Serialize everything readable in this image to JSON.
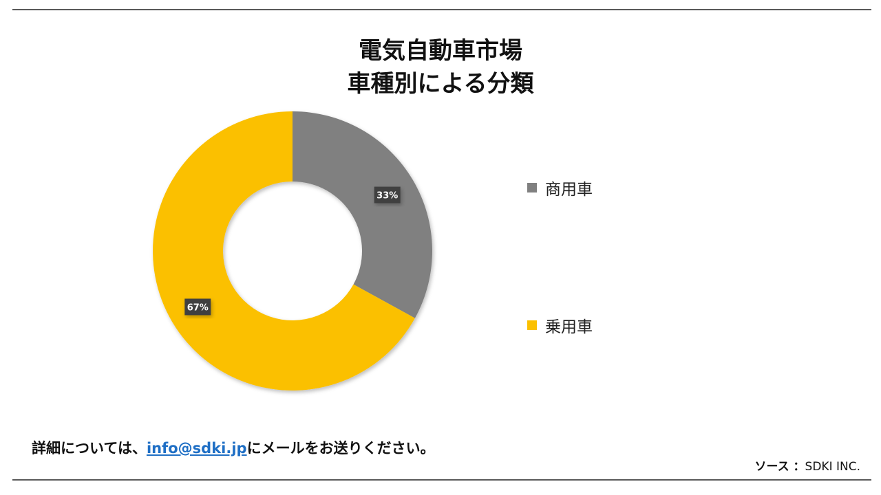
{
  "title_line1": "電気自動車市場",
  "title_line2": "車種別による分類",
  "chart_data": {
    "type": "pie",
    "hole": true,
    "categories": [
      "商用車",
      "乗用車"
    ],
    "values": [
      33,
      67
    ],
    "labels": [
      "33%",
      "67%"
    ],
    "colors": [
      "#808080",
      "#fbc000"
    ],
    "legend_position": "right"
  },
  "footer": {
    "prefix": "詳細については、",
    "email": "info@sdki.jp",
    "suffix": "にメールをお送りください。"
  },
  "source": {
    "label": "ソース ：",
    "value": "SDKI INC."
  }
}
